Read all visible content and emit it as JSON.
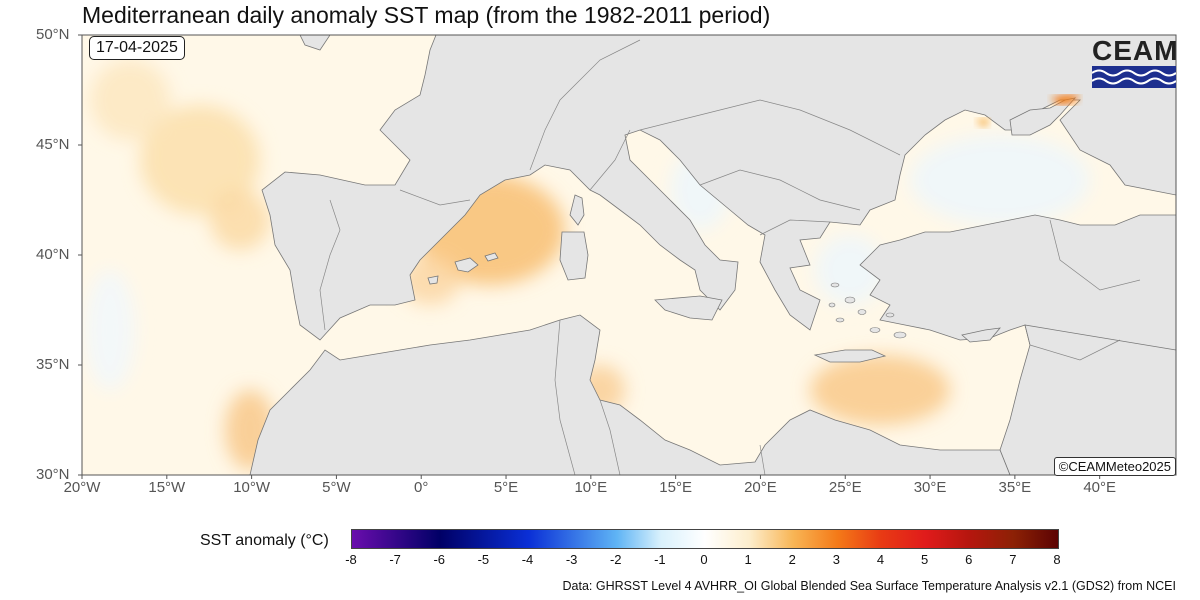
{
  "title": "Mediterranean daily anomaly SST map (from the 1982-2011 period)",
  "date": "17-04-2025",
  "copyright": "©CEAMMeteo2025",
  "logo_text": "CEAM",
  "colors": {
    "land": "#e5e5e5",
    "border": "#777777",
    "ocean_base": "#fff8e8",
    "warm": "#fbd8a0",
    "warm_strong": "#f8c279",
    "cool": "#eef6fb",
    "logo_blue": "#1d2f8f"
  },
  "y_axis": {
    "labels": [
      "50°N",
      "45°N",
      "40°N",
      "35°N",
      "30°N"
    ],
    "values": [
      50,
      45,
      40,
      35,
      30
    ]
  },
  "x_axis": {
    "labels": [
      "20°W",
      "15°W",
      "10°W",
      "5°W",
      "0°",
      "5°E",
      "10°E",
      "15°E",
      "20°E",
      "25°E",
      "30°E",
      "35°E",
      "40°E"
    ],
    "values": [
      -20,
      -15,
      -10,
      -5,
      0,
      5,
      10,
      15,
      20,
      25,
      30,
      35,
      40
    ]
  },
  "legend": {
    "title": "SST anomaly (°C)",
    "ticks": [
      "-8",
      "-7",
      "-6",
      "-5",
      "-4",
      "-3",
      "-2",
      "-1",
      "0",
      "1",
      "2",
      "3",
      "4",
      "5",
      "6",
      "7",
      "8"
    ],
    "range": [
      -8,
      8
    ],
    "stops": [
      {
        "value": -8,
        "color": "#6a0dad"
      },
      {
        "value": -6,
        "color": "#000066"
      },
      {
        "value": -4,
        "color": "#0a2fd6"
      },
      {
        "value": -2,
        "color": "#5fb4f5"
      },
      {
        "value": -1,
        "color": "#d9f1fc"
      },
      {
        "value": 0,
        "color": "#ffffff"
      },
      {
        "value": 1,
        "color": "#fdeecd"
      },
      {
        "value": 2,
        "color": "#f8b555"
      },
      {
        "value": 3,
        "color": "#f47a18"
      },
      {
        "value": 4,
        "color": "#e83a14"
      },
      {
        "value": 5,
        "color": "#e01b1b"
      },
      {
        "value": 6,
        "color": "#b5160e"
      },
      {
        "value": 7,
        "color": "#8c2105"
      },
      {
        "value": 8,
        "color": "#5c0303"
      }
    ]
  },
  "credit": "Data: GHRSST Level 4 AVHRR_OI Global Blended Sea Surface Temperature Analysis v2.1 (GDS2) from NCEI"
}
